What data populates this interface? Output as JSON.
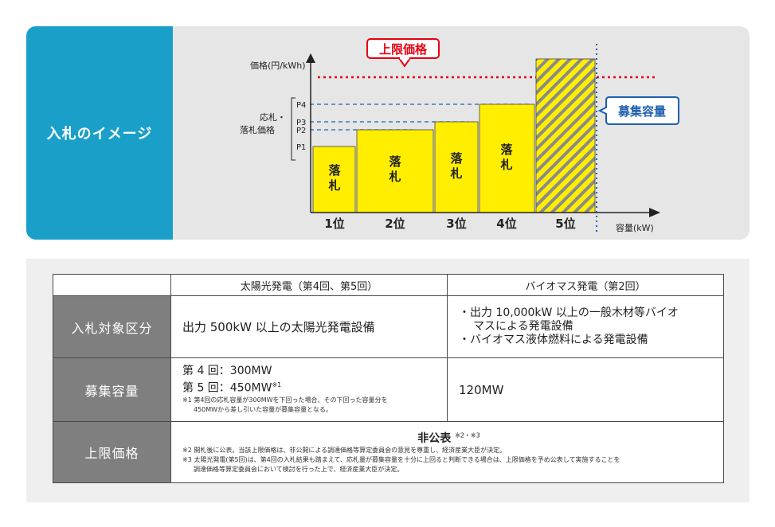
{
  "top": {
    "label": "入札のイメージ",
    "y_axis_label": "価格(円/kWh)",
    "x_axis_label": "容量(kW)",
    "bid_price_label_1": "応札・",
    "bid_price_label_2": "落札価格",
    "upper_limit_label": "上限価格",
    "capacity_label": "募集容量",
    "price_levels": [
      "P4",
      "P3",
      "P2",
      "P1"
    ],
    "award_label": "落札",
    "bars": [
      {
        "rank": "1位",
        "awarded": true
      },
      {
        "rank": "2位",
        "awarded": true
      },
      {
        "rank": "3位",
        "awarded": true
      },
      {
        "rank": "4位",
        "awarded": true
      },
      {
        "rank": "5位",
        "awarded": false
      }
    ],
    "colors": {
      "accent": "#1aa0c8",
      "bar": "#ffee00",
      "limit": "#e60012",
      "capacity": "#1f5fae"
    }
  },
  "table": {
    "col_solar": "太陽光発電（第4回、第5回）",
    "col_bio": "バイオマス発電（第2回）",
    "row1_head": "入札対象区分",
    "row1_solar": "出力 500kW 以上の太陽光発電設備",
    "row1_bio_1a": "・出力 10,000kW 以上の一般木材等バイオ",
    "row1_bio_1b": "マスによる発電設備",
    "row1_bio_2": "・バイオマス液体燃料による発電設備",
    "row2_head": "募集容量",
    "row2_solar_line1": "第 4 回：300MW",
    "row2_solar_line2": "第 5 回：450MW",
    "row2_solar_mark": "※1",
    "row2_note_a": "※1 第4回の応札容量が300MWを下回った場合、その下回った容量分を",
    "row2_note_b": "450MWから差し引いた容量が募集容量となる。",
    "row2_bio": "120MW",
    "row3_head": "上限価格",
    "row3_value": "非公表",
    "row3_mark": "※2・※3",
    "row3_note2": "※2 開札後に公表。当該上限価格は、非公開による調達価格等算定委員会の意見を尊重し、経済産業大臣が決定。",
    "row3_note3a": "※3 太陽光発電(第5回)は、第4回の入札結果も踏まえて、応札量が募集容量を十分に上回ると判断できる場合は、上限価格を予め公表して実施することを",
    "row3_note3b": "調達価格等算定委員会において検討を行った上で、経済産業大臣が決定。"
  }
}
